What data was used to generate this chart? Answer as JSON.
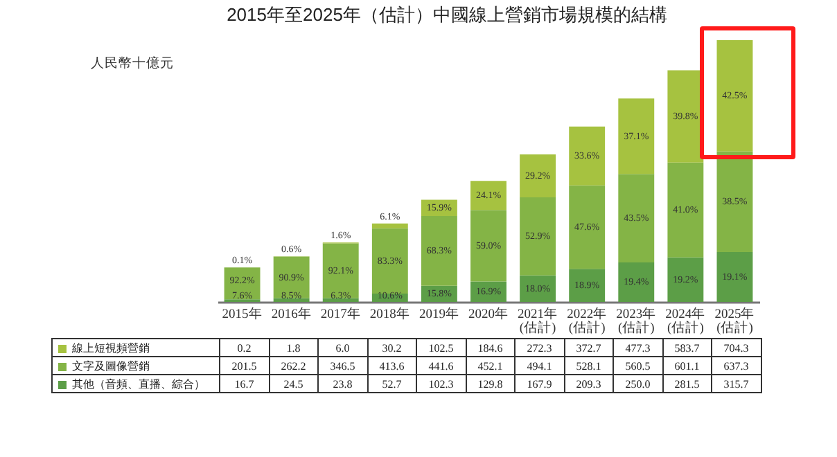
{
  "chart_data": {
    "type": "bar",
    "title": "2015年至2025年（估計）中國線上營銷市場規模的結構",
    "ylabel": "人民幣十億元",
    "categories": [
      "2015年",
      "2016年",
      "2017年",
      "2018年",
      "2019年",
      "2020年",
      "2021年\n(估計)",
      "2022年\n(估計)",
      "2023年\n(估計)",
      "2024年\n(估計)",
      "2025年\n(估計)"
    ],
    "stacked": true,
    "legend": "bottom",
    "series": [
      {
        "name": "其他（音頻、直播、綜合）",
        "color": "#5c9e47",
        "values": [
          16.7,
          24.5,
          23.8,
          52.7,
          102.3,
          129.8,
          167.9,
          209.3,
          250.0,
          281.5,
          315.7
        ],
        "value_labels": [
          "16.7",
          "24.5",
          "23.8",
          "52.7",
          "102.3",
          "129.8",
          "167.9",
          "209.3",
          "250.0",
          "281.5",
          "315.7"
        ]
      },
      {
        "name": "文字及圖像營銷",
        "color": "#84b446",
        "values": [
          201.5,
          262.2,
          346.5,
          413.6,
          441.6,
          452.1,
          494.1,
          528.1,
          560.5,
          601.1,
          637.3
        ],
        "value_labels": [
          "201.5",
          "262.2",
          "346.5",
          "413.6",
          "441.6",
          "452.1",
          "494.1",
          "528.1",
          "560.5",
          "601.1",
          "637.3"
        ]
      },
      {
        "name": "線上短視頻營銷",
        "color": "#a6c240",
        "values": [
          0.2,
          1.8,
          6.0,
          30.2,
          102.5,
          184.6,
          272.3,
          372.7,
          477.3,
          583.7,
          704.3
        ],
        "value_labels": [
          "0.2",
          "1.8",
          "6.0",
          "30.2",
          "102.5",
          "184.6",
          "272.3",
          "372.7",
          "477.3",
          "583.7",
          "704.3"
        ]
      }
    ],
    "annotations": [
      "7.6%",
      "92.2%",
      "0.1%",
      "8.5%",
      "90.9%",
      "0.6%",
      "6.3%",
      "92.1%",
      "1.6%",
      "10.6%",
      "83.3%",
      "6.1%",
      "15.8%",
      "68.3%",
      "15.9%",
      "16.9%",
      "59.0%",
      "24.1%",
      "18.0%",
      "52.9%",
      "29.2%",
      "18.9%",
      "47.6%",
      "33.6%",
      "19.4%",
      "43.5%",
      "37.1%",
      "19.2%",
      "41.0%",
      "39.8%",
      "19.1%",
      "38.5%",
      "42.5%"
    ]
  }
}
